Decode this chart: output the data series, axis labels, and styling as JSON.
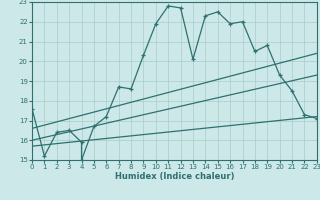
{
  "xlabel": "Humidex (Indice chaleur)",
  "xlim": [
    0,
    23
  ],
  "ylim": [
    15,
    23
  ],
  "xticks": [
    0,
    1,
    2,
    3,
    4,
    5,
    6,
    7,
    8,
    9,
    10,
    11,
    12,
    13,
    14,
    15,
    16,
    17,
    18,
    19,
    20,
    21,
    22,
    23
  ],
  "yticks": [
    15,
    16,
    17,
    18,
    19,
    20,
    21,
    22,
    23
  ],
  "bg_color": "#cce8e8",
  "grid_color": "#aacccc",
  "line_color": "#2f7070",
  "jagged_x": [
    0,
    1,
    2,
    3,
    4,
    4,
    5,
    6,
    7,
    8,
    9,
    10,
    11,
    12,
    13,
    14,
    15,
    16,
    17,
    18,
    19,
    20,
    21,
    22,
    23
  ],
  "jagged_y": [
    17.6,
    15.2,
    16.4,
    16.5,
    15.9,
    15.0,
    16.7,
    17.2,
    18.7,
    18.6,
    20.3,
    21.9,
    22.8,
    22.7,
    20.1,
    22.3,
    22.5,
    21.9,
    22.0,
    20.5,
    20.8,
    19.3,
    18.5,
    17.3,
    17.1
  ],
  "line1_x": [
    0,
    23
  ],
  "line1_y": [
    16.6,
    20.4
  ],
  "line2_x": [
    0,
    23
  ],
  "line2_y": [
    16.0,
    19.3
  ],
  "line3_x": [
    0,
    23
  ],
  "line3_y": [
    15.7,
    17.2
  ]
}
